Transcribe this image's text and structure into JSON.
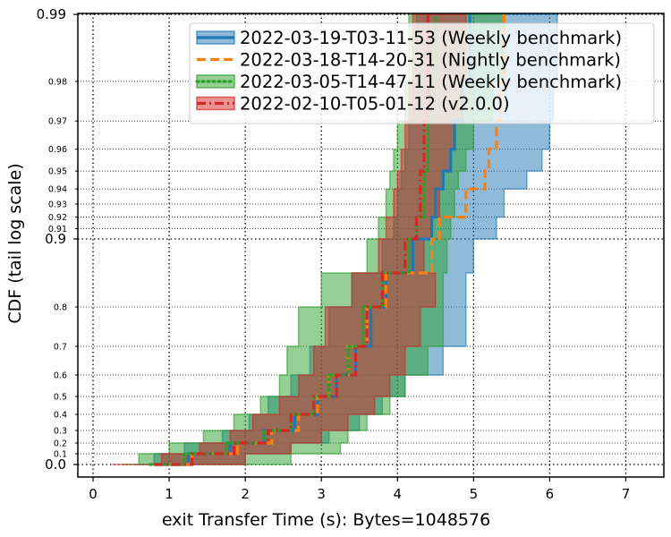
{
  "chart_data": {
    "type": "line",
    "title": "",
    "xlabel": "exit Transfer Time (s): Bytes=1048576",
    "ylabel": "CDF (tail log scale)",
    "xlim": [
      -0.2,
      7.5
    ],
    "ylim": [
      0.0,
      0.99
    ],
    "y_scale": "tail log",
    "grid": true,
    "legend_position": "top-right",
    "x_ticks": [
      "0",
      "1",
      "2",
      "3",
      "4",
      "5",
      "6",
      "7"
    ],
    "y_ticks_major": [
      "0.0",
      "0.9",
      "0.99"
    ],
    "y_ticks_minor": [
      "0.1",
      "0.2",
      "0.3",
      "0.4",
      "0.5",
      "0.6",
      "0.7",
      "0.8",
      "0.91",
      "0.92",
      "0.93",
      "0.94",
      "0.95",
      "0.96",
      "0.97",
      "0.98"
    ],
    "y": [
      0.0,
      0.1,
      0.2,
      0.3,
      0.4,
      0.5,
      0.6,
      0.7,
      0.8,
      0.85,
      0.9,
      0.92,
      0.94,
      0.95,
      0.96,
      0.97,
      0.98,
      0.99
    ],
    "series": [
      {
        "name": "2022-03-19-T03-11-53 (Weekly benchmark)",
        "color": "#1f77b4",
        "style": "solid",
        "x": [
          0.8,
          1.25,
          1.8,
          2.25,
          2.65,
          2.95,
          3.2,
          3.45,
          3.65,
          3.85,
          4.2,
          4.45,
          4.5,
          4.6,
          4.7,
          4.75,
          4.85,
          4.95
        ],
        "lower": [
          0.55,
          0.8,
          1.2,
          1.7,
          2.05,
          2.3,
          2.6,
          2.85,
          3.1,
          3.4,
          3.8,
          3.95,
          4.0,
          4.05,
          4.1,
          4.15,
          4.2,
          4.25
        ],
        "upper": [
          1.3,
          2.0,
          2.6,
          3.1,
          3.5,
          3.8,
          4.1,
          4.6,
          4.9,
          4.9,
          5.0,
          5.3,
          5.4,
          5.7,
          5.9,
          6.0,
          6.05,
          6.1
        ]
      },
      {
        "name": "2022-03-18-T14-20-31 (Nightly benchmark)",
        "color": "#ff7f0e",
        "style": "dashed",
        "x": [
          0.8,
          1.3,
          1.9,
          2.35,
          2.7,
          2.95,
          3.1,
          3.35,
          3.6,
          3.85,
          4.45,
          4.55,
          4.9,
          5.15,
          5.2,
          5.3,
          5.35,
          5.4
        ],
        "lower": null,
        "upper": null
      },
      {
        "name": "2022-03-05-T14-47-11 (Weekly benchmark)",
        "color": "#2ca02c",
        "style": "dotted",
        "x": [
          0.75,
          1.2,
          1.75,
          2.25,
          2.6,
          2.9,
          3.1,
          3.35,
          3.55,
          3.8,
          4.15,
          4.25,
          4.35,
          4.35,
          4.4,
          4.4,
          4.45,
          4.5
        ],
        "lower": [
          0.4,
          0.6,
          1.0,
          1.45,
          1.85,
          2.2,
          2.45,
          2.55,
          2.7,
          3.0,
          3.6,
          3.75,
          3.85,
          3.9,
          3.95,
          4.0,
          4.1,
          4.15
        ],
        "upper": [
          1.9,
          2.6,
          3.25,
          3.35,
          3.6,
          3.9,
          4.1,
          4.4,
          4.6,
          4.6,
          4.65,
          4.7,
          4.75,
          4.8,
          4.9,
          5.0,
          5.25,
          5.4
        ]
      },
      {
        "name": "2022-02-10-T05-01-12 (v2.0.0)",
        "color": "#d62728",
        "style": "dashdot",
        "x": [
          0.8,
          1.3,
          1.85,
          2.3,
          2.6,
          2.9,
          3.2,
          3.45,
          3.6,
          3.8,
          4.1,
          4.25,
          4.3,
          4.3,
          4.35,
          4.35,
          4.4,
          4.4
        ],
        "lower": [
          0.25,
          0.9,
          1.4,
          1.8,
          2.1,
          2.45,
          2.7,
          2.9,
          3.05,
          3.4,
          3.75,
          3.85,
          3.95,
          4.0,
          4.05,
          4.1,
          4.15,
          4.2
        ],
        "upper": [
          1.7,
          2.0,
          2.6,
          3.0,
          3.35,
          3.7,
          3.9,
          4.1,
          4.3,
          4.5,
          4.35,
          4.45,
          4.55,
          4.6,
          4.7,
          4.75,
          4.85,
          4.9
        ]
      }
    ]
  }
}
